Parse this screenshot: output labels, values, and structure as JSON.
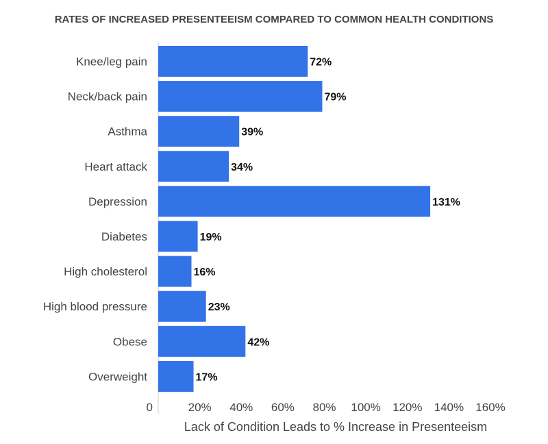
{
  "chart_data": {
    "type": "bar",
    "orientation": "horizontal",
    "title": "RATES OF INCREASED PRESENTEEISM COMPARED TO COMMON HEALTH CONDITIONS",
    "xlabel": "Lack of Condition Leads to % Increase in Presenteeism",
    "ylabel": "",
    "categories": [
      "Knee/leg pain",
      "Neck/back pain",
      "Asthma",
      "Heart attack",
      "Depression",
      "Diabetes",
      "High cholesterol",
      "High blood pressure",
      "Obese",
      "Overweight"
    ],
    "values": [
      72,
      79,
      39,
      34,
      131,
      19,
      16,
      23,
      42,
      17
    ],
    "value_labels": [
      "72%",
      "79%",
      "39%",
      "34%",
      "131%",
      "19%",
      "16%",
      "23%",
      "42%",
      "17%"
    ],
    "xlim": [
      0,
      160
    ],
    "x_ticks": [
      0,
      20,
      40,
      60,
      80,
      100,
      120,
      140,
      160
    ],
    "x_tick_labels": [
      "0",
      "20%",
      "40%",
      "60%",
      "80%",
      "100%",
      "120%",
      "140%",
      "160%"
    ],
    "bar_color": "#3273e8",
    "grid": false,
    "legend": "none"
  }
}
